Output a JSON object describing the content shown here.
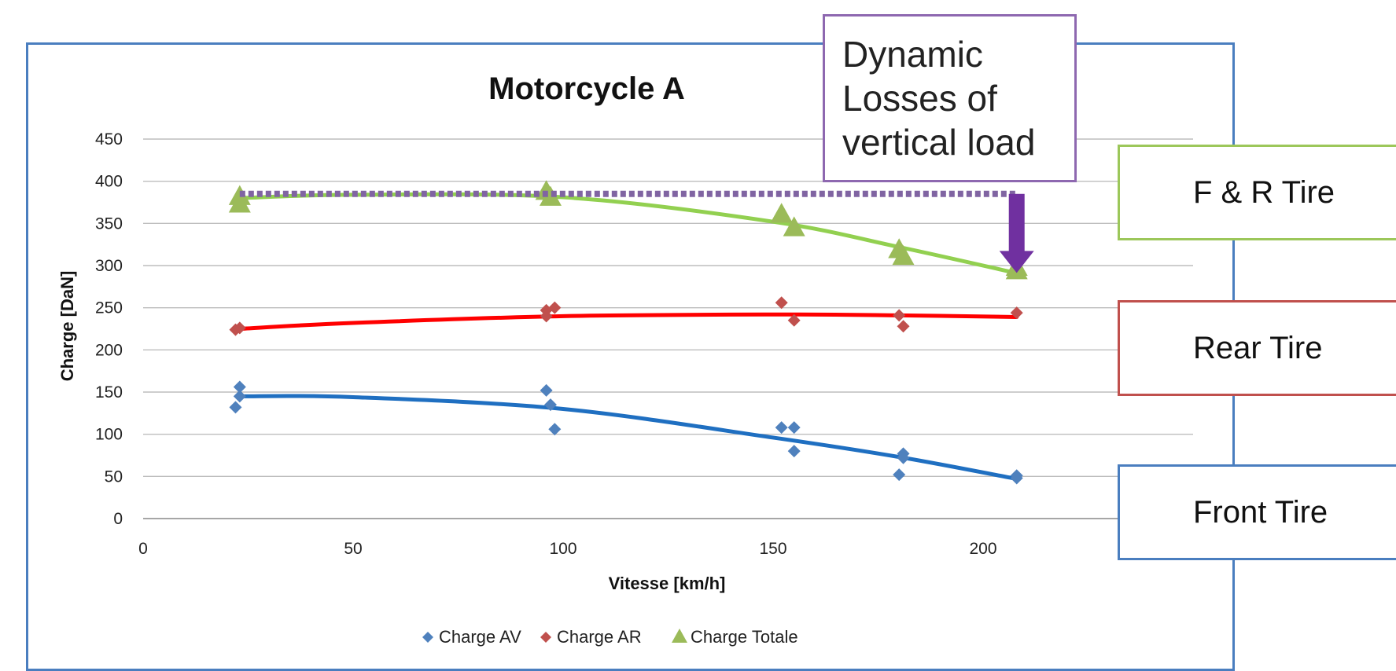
{
  "chart_data": {
    "type": "scatter",
    "title": "Motorcycle A",
    "xlabel": "Vitesse [km/h]",
    "ylabel": "Charge [DaN]",
    "xlim": [
      0,
      250
    ],
    "ylim": [
      0,
      450
    ],
    "x_ticks": [
      0,
      50,
      100,
      150,
      200
    ],
    "y_ticks": [
      0,
      50,
      100,
      150,
      200,
      250,
      300,
      350,
      400,
      450
    ],
    "grid": "horizontal",
    "legend_position": "bottom",
    "series": [
      {
        "name": "Charge AV",
        "color": "#4f81bd",
        "marker": "diamond",
        "trendline_color": "#1f6fc1",
        "points": [
          [
            22,
            132
          ],
          [
            23,
            156
          ],
          [
            23,
            145
          ],
          [
            96,
            152
          ],
          [
            97,
            135
          ],
          [
            98,
            106
          ],
          [
            152,
            108
          ],
          [
            155,
            108
          ],
          [
            155,
            80
          ],
          [
            180,
            52
          ],
          [
            181,
            77
          ],
          [
            181,
            72
          ],
          [
            208,
            51
          ],
          [
            208,
            48
          ]
        ],
        "trendline": [
          [
            23,
            145
          ],
          [
            50,
            144
          ],
          [
            100,
            130
          ],
          [
            150,
            96
          ],
          [
            180,
            73
          ],
          [
            208,
            47
          ]
        ]
      },
      {
        "name": "Charge AR",
        "color": "#c0504d",
        "marker": "diamond",
        "trendline_color": "#ff0000",
        "points": [
          [
            22,
            224
          ],
          [
            23,
            226
          ],
          [
            96,
            247
          ],
          [
            96,
            240
          ],
          [
            98,
            250
          ],
          [
            152,
            256
          ],
          [
            155,
            235
          ],
          [
            180,
            241
          ],
          [
            181,
            228
          ],
          [
            208,
            244
          ]
        ],
        "trendline": [
          [
            23,
            225
          ],
          [
            50,
            232
          ],
          [
            100,
            240
          ],
          [
            150,
            242
          ],
          [
            180,
            241
          ],
          [
            208,
            239
          ]
        ]
      },
      {
        "name": "Charge Totale",
        "color": "#9bbb59",
        "marker": "triangle",
        "trendline_color": "#92d050",
        "points": [
          [
            23,
            381
          ],
          [
            23,
            372
          ],
          [
            96,
            387
          ],
          [
            97,
            380
          ],
          [
            152,
            360
          ],
          [
            155,
            344
          ],
          [
            180,
            318
          ],
          [
            181,
            310
          ],
          [
            208,
            297
          ],
          [
            208,
            293
          ]
        ],
        "trendline": [
          [
            23,
            380
          ],
          [
            50,
            384
          ],
          [
            100,
            381
          ],
          [
            150,
            352
          ],
          [
            180,
            322
          ],
          [
            208,
            291
          ]
        ]
      }
    ],
    "annotations": {
      "reference_line": {
        "y": 385,
        "x_from": 23,
        "x_to": 208,
        "color": "#8064a2",
        "style": "dotted"
      },
      "arrow": {
        "x": 208,
        "y_from": 385,
        "y_to": 295,
        "color": "#7030a0"
      }
    }
  },
  "callouts": {
    "dynamic_losses": {
      "lines": [
        "Dynamic",
        "Losses of",
        "vertical load"
      ],
      "border_color": "#8e68b0"
    },
    "tire_boxes": [
      {
        "label": "F & R Tire",
        "border_color": "#9cc75a"
      },
      {
        "label": "Rear Tire",
        "border_color": "#c0504d"
      },
      {
        "label": "Front Tire",
        "border_color": "#4a7ebf"
      }
    ]
  }
}
